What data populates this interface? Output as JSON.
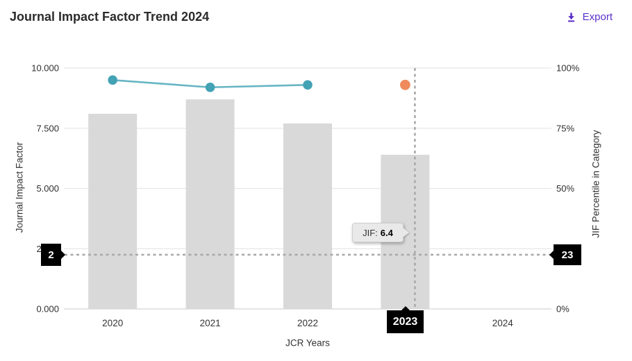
{
  "header": {
    "title": "Journal Impact Factor Trend 2024",
    "export_label": "Export",
    "accent_color": "#5c31c9"
  },
  "chart_data": {
    "type": "bar",
    "title": "Journal Impact Factor Trend 2024",
    "categories": [
      "2020",
      "2021",
      "2022",
      "2023",
      "2024"
    ],
    "series": [
      {
        "name": "Journal Impact Factor",
        "type": "bar",
        "axis": "left",
        "color": "#d9d9d9",
        "values": [
          8.1,
          8.7,
          7.7,
          6.4,
          null
        ]
      },
      {
        "name": "JIF Percentile in Category",
        "type": "line",
        "axis": "right",
        "line_color": "#67b5c4",
        "marker_color": "#43a2b4",
        "values": [
          95,
          92,
          93,
          null,
          null
        ]
      },
      {
        "name": "JIF Percentile in Category (2023 preview point)",
        "type": "scatter",
        "axis": "right",
        "color": "#ef8a5d",
        "values": [
          null,
          null,
          null,
          93,
          null
        ]
      }
    ],
    "xlabel": "JCR Years",
    "ylabel_left": "Journal Impact Factor",
    "ylabel_right": "JIF Percentile in Category",
    "ylim_left": [
      0,
      10
    ],
    "ylim_right": [
      0,
      100
    ],
    "left_ticks": [
      "0.000",
      "2.500",
      "5.000",
      "7.500",
      "10.000"
    ],
    "right_ticks": [
      "0%",
      "25%",
      "50%",
      "75%",
      "100%"
    ],
    "grid": true,
    "gridline_color": "#e7e7e7",
    "axisline_color": "#d4d4d4"
  },
  "crosshair": {
    "year": "2023",
    "y_jif": 2.25,
    "jif_axis_label": "2",
    "percentile_axis_label": "23",
    "color": "#a9a9a9",
    "tooltip": {
      "prefix": "JIF:",
      "value": "6.4"
    }
  }
}
